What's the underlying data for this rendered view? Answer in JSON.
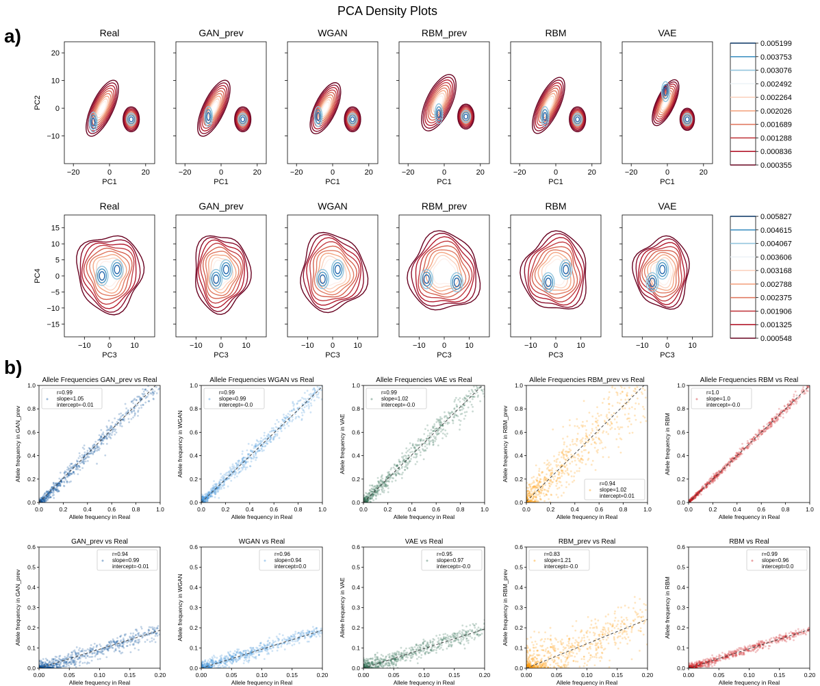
{
  "figure": {
    "title": "PCA Density Plots",
    "panel_a_label": "a)",
    "panel_b_label": "b)"
  },
  "colors": {
    "density_levels_light_to_dark": [
      "#fdf0eb",
      "#fbd3c0",
      "#f4a582",
      "#e07a62",
      "#d6604d",
      "#c23b41",
      "#b2182b",
      "#8b0d2c",
      "#67001f"
    ],
    "density_peak": [
      "#d1e5f0",
      "#92c5de",
      "#4393c3",
      "#2166ac",
      "#053061"
    ],
    "GAN_prev": "#08519c",
    "WGAN": "#3a8fd9",
    "VAE": "#2d6a4f",
    "RBM_prev": "#ff9900",
    "RBM": "#cb181d"
  },
  "chart_data": [
    {
      "type": "contour",
      "row": "pc1_pc2",
      "panels": [
        "Real",
        "GAN_prev",
        "WGAN",
        "RBM_prev",
        "RBM",
        "VAE"
      ],
      "xlabel": "PC1",
      "ylabel": "PC2",
      "xticks": [
        "−20",
        "0",
        "20"
      ],
      "yticks": [
        "20",
        "10",
        "0",
        "−10"
      ],
      "xlim": [
        -25,
        25
      ],
      "ylim": [
        -20,
        24
      ],
      "colorbar_levels": [
        "0.005199",
        "0.003753",
        "0.003076",
        "0.002492",
        "0.002264",
        "0.002026",
        "0.001689",
        "0.001288",
        "0.000836",
        "0.000355"
      ],
      "clusters": {
        "Real": [
          {
            "x": -4,
            "y": 0,
            "sx": 6,
            "sy": 11,
            "peak": [
              -9,
              -5
            ]
          },
          {
            "x": 12,
            "y": -4,
            "sx": 4.5,
            "sy": 4.5,
            "peak": [
              12,
              -4
            ]
          }
        ],
        "GAN_prev": [
          {
            "x": -4,
            "y": 0,
            "sx": 6,
            "sy": 11,
            "peak": [
              -7,
              -3
            ]
          },
          {
            "x": 12,
            "y": -4,
            "sx": 4.5,
            "sy": 4.5,
            "peak": [
              12,
              -4
            ]
          }
        ],
        "WGAN": [
          {
            "x": -4,
            "y": 0,
            "sx": 6,
            "sy": 10,
            "peak": [
              -8,
              -3
            ]
          },
          {
            "x": 11,
            "y": -4,
            "sx": 4.5,
            "sy": 4.5,
            "peak": [
              11,
              -4
            ]
          }
        ],
        "RBM_prev": [
          {
            "x": -3,
            "y": 2,
            "sx": 7,
            "sy": 11,
            "peak": [
              -3,
              -2
            ]
          },
          {
            "x": 12,
            "y": -3,
            "sx": 4.5,
            "sy": 4.5,
            "peak": [
              12,
              -3
            ]
          }
        ],
        "RBM": [
          {
            "x": -4,
            "y": 1,
            "sx": 6,
            "sy": 11,
            "peak": [
              -6,
              -3
            ]
          },
          {
            "x": 12,
            "y": -4,
            "sx": 4.5,
            "sy": 4.5,
            "peak": [
              12,
              -4
            ]
          }
        ],
        "VAE": [
          {
            "x": -1,
            "y": 2,
            "sx": 5,
            "sy": 9,
            "peak": [
              -1,
              6
            ]
          },
          {
            "x": 11,
            "y": -4,
            "sx": 4,
            "sy": 4,
            "peak": [
              11,
              -4
            ]
          }
        ]
      }
    },
    {
      "type": "contour",
      "row": "pc3_pc4",
      "panels": [
        "Real",
        "GAN_prev",
        "WGAN",
        "RBM_prev",
        "RBM",
        "VAE"
      ],
      "xlabel": "PC3",
      "ylabel": "PC4",
      "xticks": [
        "−10",
        "0",
        "10"
      ],
      "yticks": [
        "15",
        "10",
        "5",
        "0",
        "−5",
        "−10",
        "−15"
      ],
      "xlim": [
        -18,
        18
      ],
      "ylim": [
        -19,
        19
      ],
      "colorbar_levels": [
        "0.005827",
        "0.004615",
        "0.004067",
        "0.003606",
        "0.003168",
        "0.002788",
        "0.002375",
        "0.001906",
        "0.001325",
        "0.000548"
      ],
      "blobs": {
        "Real": {
          "cx": 0,
          "cy": 1,
          "rx": 13,
          "ry": 12,
          "peaks": [
            [
              -3,
              0
            ],
            [
              3,
              2
            ]
          ]
        },
        "GAN_prev": {
          "cx": 0,
          "cy": 1,
          "rx": 11,
          "ry": 12,
          "peaks": [
            [
              2,
              2
            ],
            [
              -2,
              -1
            ]
          ]
        },
        "WGAN": {
          "cx": 0,
          "cy": 1,
          "rx": 13,
          "ry": 12,
          "peaks": [
            [
              -4,
              -1
            ],
            [
              2,
              2
            ]
          ]
        },
        "RBM_prev": {
          "cx": 0,
          "cy": 1,
          "rx": 14,
          "ry": 12,
          "peaks": [
            [
              -7,
              -1
            ],
            [
              5,
              -2
            ]
          ]
        },
        "RBM": {
          "cx": 0,
          "cy": 1,
          "rx": 13,
          "ry": 12,
          "peaks": [
            [
              -3,
              -2
            ],
            [
              4,
              2
            ]
          ]
        },
        "VAE": {
          "cx": -2,
          "cy": 1,
          "rx": 11,
          "ry": 11,
          "peaks": [
            [
              -6,
              -2
            ],
            [
              -2,
              2
            ]
          ]
        }
      }
    },
    {
      "type": "scatter",
      "row": "allele_full",
      "xlabel": "Allele frequency in Real",
      "xlim": [
        0,
        1
      ],
      "ylim": [
        0,
        1
      ],
      "xticks": [
        "0.0",
        "0.2",
        "0.4",
        "0.6",
        "0.8",
        "1.0"
      ],
      "yticks": [
        "0.0",
        "0.2",
        "0.4",
        "0.6",
        "0.8",
        "1.0"
      ],
      "panels": [
        {
          "model": "GAN_prev",
          "title": "Allele Frequencies GAN_prev vs Real",
          "ylabel": "Allele frequency in GAN_prev",
          "legend": [
            "r=0.99",
            "slope=1.05",
            "intercept=-0.01"
          ],
          "legend_loc": "upper left",
          "slope": 1.05,
          "intercept": -0.01,
          "spread": 0.035
        },
        {
          "model": "WGAN",
          "title": "Allele Frequencies WGAN vs Real",
          "ylabel": "Allele frequency in WGAN",
          "legend": [
            "r=0.99",
            "slope=0.99",
            "intercept=-0.0"
          ],
          "legend_loc": "upper left",
          "slope": 0.99,
          "intercept": 0.0,
          "spread": 0.035
        },
        {
          "model": "VAE",
          "title": "Allele Frequencies VAE vs Real",
          "ylabel": "Allele frequency in VAE",
          "legend": [
            "r=0.99",
            "slope=1.02",
            "intercept=-0.0"
          ],
          "legend_loc": "upper left",
          "slope": 1.02,
          "intercept": 0.0,
          "spread": 0.045
        },
        {
          "model": "RBM_prev",
          "title": "Allele Frequencies RBM_prev vs Real",
          "ylabel": "Allele frequency in RBM_prev",
          "legend": [
            "r=0.94",
            "slope=1.02",
            "intercept=0.01"
          ],
          "legend_loc": "lower right",
          "slope": 1.02,
          "intercept": 0.01,
          "spread": 0.12
        },
        {
          "model": "RBM",
          "title": "Allele Frequencies RBM vs Real",
          "ylabel": "Allele frequency in RBM",
          "legend": [
            "r=1.0",
            "slope=1.0",
            "intercept=-0.0"
          ],
          "legend_loc": "upper left",
          "slope": 1.0,
          "intercept": 0.0,
          "spread": 0.015
        }
      ]
    },
    {
      "type": "scatter",
      "row": "allele_low",
      "xlabel": "Allele frequency in Real",
      "xlim": [
        0,
        0.2
      ],
      "ylim": [
        0,
        0.6
      ],
      "xticks": [
        "0.00",
        "0.05",
        "0.10",
        "0.15",
        "0.20"
      ],
      "yticks": [
        "0.0",
        "0.1",
        "0.2",
        "0.3",
        "0.4",
        "0.5",
        "0.6"
      ],
      "panels": [
        {
          "model": "GAN_prev",
          "title": "GAN_prev vs Real",
          "ylabel": "Allele frequency in GAN_prev",
          "legend": [
            "r=0.94",
            "slope=0.99",
            "intercept=-0.01"
          ],
          "legend_loc": "upper right",
          "slope": 0.99,
          "intercept": -0.01,
          "spread": 0.025
        },
        {
          "model": "WGAN",
          "title": "WGAN vs Real",
          "ylabel": "Allele frequency in WGAN",
          "legend": [
            "r=0.96",
            "slope=0.94",
            "intercept=0.0"
          ],
          "legend_loc": "upper right",
          "slope": 0.94,
          "intercept": 0.0,
          "spread": 0.02
        },
        {
          "model": "VAE",
          "title": "VAE vs Real",
          "ylabel": "Allele frequency in VAE",
          "legend": [
            "r=0.95",
            "slope=0.97",
            "intercept=-0.0"
          ],
          "legend_loc": "upper right",
          "slope": 0.97,
          "intercept": 0.0,
          "spread": 0.025
        },
        {
          "model": "RBM_prev",
          "title": "RBM_prev vs Real",
          "ylabel": "Allele frequency in RBM_prev",
          "legend": [
            "r=0.83",
            "slope=1.21",
            "intercept=-0.0"
          ],
          "legend_loc": "upper left",
          "slope": 1.21,
          "intercept": 0.0,
          "spread": 0.07
        },
        {
          "model": "RBM",
          "title": "RBM vs Real",
          "ylabel": "Allele frequency in RBM",
          "legend": [
            "r=0.99",
            "slope=0.96",
            "intercept=0.0"
          ],
          "legend_loc": "upper right",
          "slope": 0.96,
          "intercept": 0.0,
          "spread": 0.012
        }
      ]
    }
  ]
}
